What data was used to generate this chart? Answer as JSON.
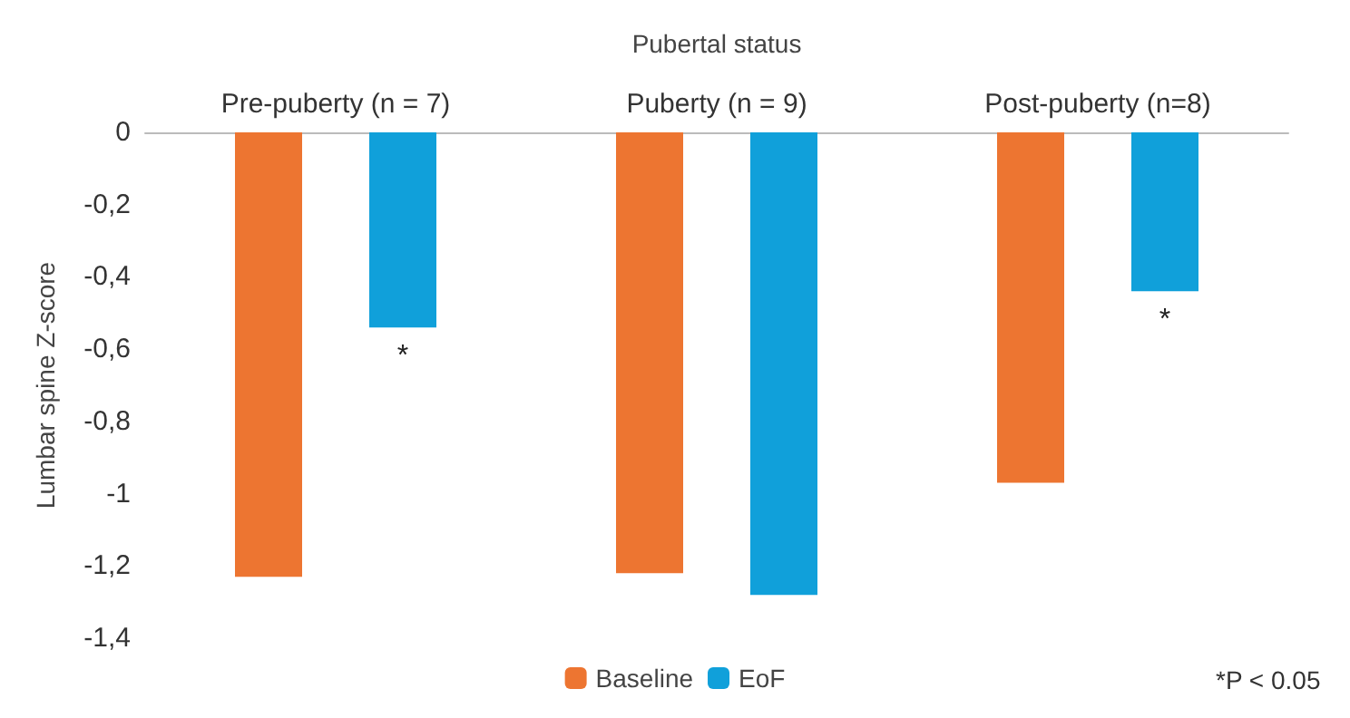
{
  "chart_data": {
    "type": "bar",
    "xlabel": "Pubertal status",
    "ylabel": "Lumbar spine Z-score",
    "categories": [
      "Pre-puberty (n = 7)",
      "Puberty (n = 9)",
      "Post-puberty (n=8)"
    ],
    "series": [
      {
        "name": "Baseline",
        "color": "#ed7531",
        "values": [
          -1.23,
          -1.22,
          -0.97
        ]
      },
      {
        "name": "EoF",
        "color": "#10a0da",
        "values": [
          -0.54,
          -1.28,
          -0.44
        ],
        "value_labels": [
          "*",
          null,
          "*"
        ]
      }
    ],
    "ylim": [
      -1.4,
      0
    ],
    "yticks": [
      {
        "value": -1.4,
        "label": "-1,4"
      },
      {
        "value": -1.2,
        "label": "-1,2"
      },
      {
        "value": -1,
        "label": "-1"
      },
      {
        "value": -0.8,
        "label": "-0,8"
      },
      {
        "value": -0.6,
        "label": "-0,6"
      },
      {
        "value": -0.4,
        "label": "-0,4"
      },
      {
        "value": -0.2,
        "label": "-0,2"
      },
      {
        "value": 0,
        "label": "0"
      }
    ],
    "grid": false,
    "legend": "bottom",
    "annotations": [
      "*P < 0.05"
    ]
  }
}
